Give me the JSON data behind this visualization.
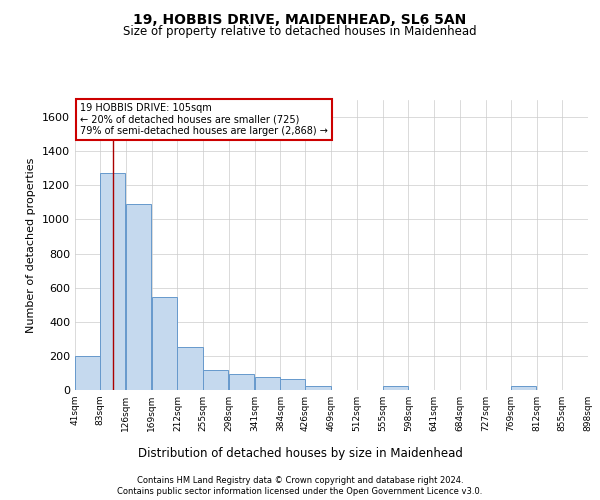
{
  "title1": "19, HOBBIS DRIVE, MAIDENHEAD, SL6 5AN",
  "title2": "Size of property relative to detached houses in Maidenhead",
  "xlabel": "Distribution of detached houses by size in Maidenhead",
  "ylabel": "Number of detached properties",
  "footer1": "Contains HM Land Registry data © Crown copyright and database right 2024.",
  "footer2": "Contains public sector information licensed under the Open Government Licence v3.0.",
  "annotation_line1": "19 HOBBIS DRIVE: 105sqm",
  "annotation_line2": "← 20% of detached houses are smaller (725)",
  "annotation_line3": "79% of semi-detached houses are larger (2,868) →",
  "property_size": 105,
  "bar_color": "#c5d9ee",
  "bar_edge_color": "#6699cc",
  "vline_color": "#aa0000",
  "annotation_box_color": "#ffffff",
  "annotation_box_edge": "#cc0000",
  "background_color": "#ffffff",
  "grid_color": "#cccccc",
  "bin_edges": [
    41,
    83,
    126,
    169,
    212,
    255,
    298,
    341,
    384,
    426,
    469,
    512,
    555,
    598,
    641,
    684,
    727,
    769,
    812,
    855,
    898
  ],
  "bar_heights": [
    197,
    1270,
    1090,
    547,
    250,
    119,
    95,
    76,
    65,
    25,
    0,
    0,
    25,
    0,
    0,
    0,
    0,
    25,
    0,
    0
  ],
  "ylim": [
    0,
    1700
  ],
  "yticks": [
    0,
    200,
    400,
    600,
    800,
    1000,
    1200,
    1400,
    1600
  ]
}
